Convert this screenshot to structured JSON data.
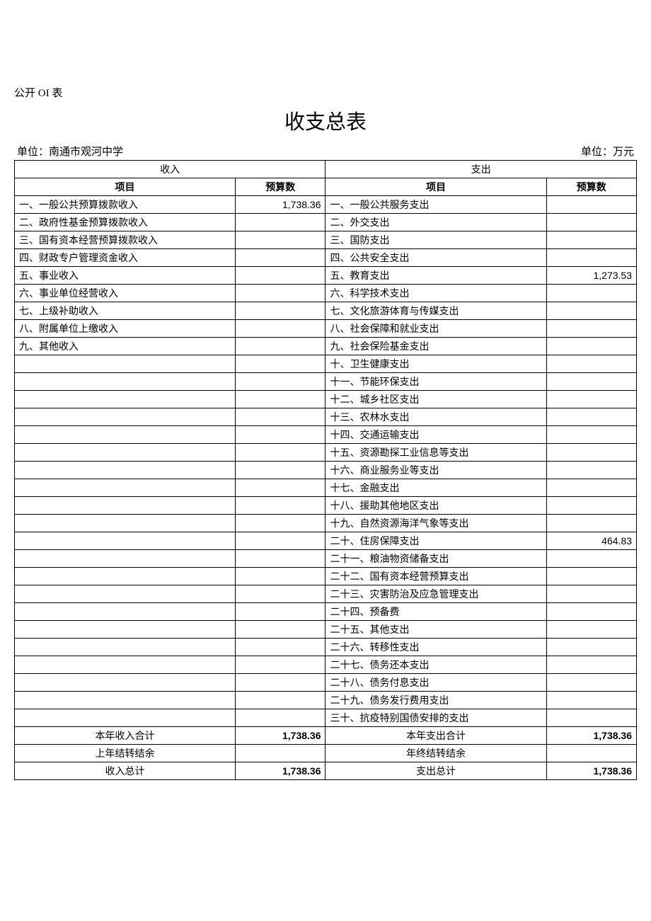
{
  "table_id": "公开 OI 表",
  "title": "收支总表",
  "unit_left": "单位：南通市观河中学",
  "unit_right": "单位：万元",
  "colors": {
    "background": "#ffffff",
    "text": "#000000",
    "border": "#000000"
  },
  "headers": {
    "income_section": "收入",
    "expense_section": "支出",
    "item": "项目",
    "budget": "预算数"
  },
  "income_rows": [
    {
      "label": "一、一般公共预算拨款收入",
      "value": "1,738.36"
    },
    {
      "label": "二、政府性基金预算拨款收入",
      "value": ""
    },
    {
      "label": "三、国有资本经营预算拨款收入",
      "value": ""
    },
    {
      "label": "四、财政专户管理资金收入",
      "value": ""
    },
    {
      "label": "五、事业收入",
      "value": ""
    },
    {
      "label": "六、事业单位经营收入",
      "value": ""
    },
    {
      "label": "七、上级补助收入",
      "value": ""
    },
    {
      "label": "八、附属单位上缴收入",
      "value": ""
    },
    {
      "label": "九、其他收入",
      "value": ""
    },
    {
      "label": "",
      "value": ""
    },
    {
      "label": "",
      "value": ""
    },
    {
      "label": "",
      "value": ""
    },
    {
      "label": "",
      "value": ""
    },
    {
      "label": "",
      "value": ""
    },
    {
      "label": "",
      "value": ""
    },
    {
      "label": "",
      "value": ""
    },
    {
      "label": "",
      "value": ""
    },
    {
      "label": "",
      "value": ""
    },
    {
      "label": "",
      "value": ""
    },
    {
      "label": "",
      "value": ""
    },
    {
      "label": "",
      "value": ""
    },
    {
      "label": "",
      "value": ""
    },
    {
      "label": "",
      "value": ""
    },
    {
      "label": "",
      "value": ""
    },
    {
      "label": "",
      "value": ""
    },
    {
      "label": "",
      "value": ""
    },
    {
      "label": "",
      "value": ""
    },
    {
      "label": "",
      "value": ""
    },
    {
      "label": "",
      "value": ""
    },
    {
      "label": "",
      "value": ""
    }
  ],
  "expense_rows": [
    {
      "label": "一、一般公共服务支出",
      "value": ""
    },
    {
      "label": "二、外交支出",
      "value": ""
    },
    {
      "label": "三、国防支出",
      "value": ""
    },
    {
      "label": "四、公共安全支出",
      "value": ""
    },
    {
      "label": "五、教育支出",
      "value": "1,273.53"
    },
    {
      "label": "六、科学技术支出",
      "value": ""
    },
    {
      "label": "七、文化旅游体育与传媒支出",
      "value": ""
    },
    {
      "label": "八、社会保障和就业支出",
      "value": ""
    },
    {
      "label": "九、社会保险基金支出",
      "value": ""
    },
    {
      "label": "十、卫生健康支出",
      "value": ""
    },
    {
      "label": "十一、节能环保支出",
      "value": ""
    },
    {
      "label": "十二、城乡社区支出",
      "value": ""
    },
    {
      "label": "十三、农林水支出",
      "value": ""
    },
    {
      "label": "十四、交通运输支出",
      "value": ""
    },
    {
      "label": "十五、资源勘探工业信息等支出",
      "value": ""
    },
    {
      "label": "十六、商业服务业等支出",
      "value": ""
    },
    {
      "label": "十七、金融支出",
      "value": ""
    },
    {
      "label": "十八、援助其他地区支出",
      "value": ""
    },
    {
      "label": "十九、自然资源海洋气象等支出",
      "value": ""
    },
    {
      "label": "二十、住房保障支出",
      "value": "464.83"
    },
    {
      "label": "二十一、粮油物资储备支出",
      "value": ""
    },
    {
      "label": "二十二、国有资本经营预算支出",
      "value": ""
    },
    {
      "label": "二十三、灾害防治及应急管理支出",
      "value": ""
    },
    {
      "label": "二十四、预备费",
      "value": ""
    },
    {
      "label": "二十五、其他支出",
      "value": ""
    },
    {
      "label": "二十六、转移性支出",
      "value": ""
    },
    {
      "label": "二十七、债务还本支出",
      "value": ""
    },
    {
      "label": "二十八、债务付息支出",
      "value": ""
    },
    {
      "label": "二十九、债务发行费用支出",
      "value": ""
    },
    {
      "label": "三十、抗疫特别国债安排的支出",
      "value": ""
    }
  ],
  "summary": {
    "income_year_label": "本年收入合计",
    "income_year_value": "1,738.36",
    "expense_year_label": "本年支出合计",
    "expense_year_value": "1,738.36",
    "income_prev_label": "上年结转结余",
    "income_prev_value": "",
    "expense_prev_label": "年终结转结余",
    "expense_prev_value": "",
    "income_total_label": "收入总计",
    "income_total_value": "1,738.36",
    "expense_total_label": "支出总计",
    "expense_total_value": "1,738.36"
  }
}
